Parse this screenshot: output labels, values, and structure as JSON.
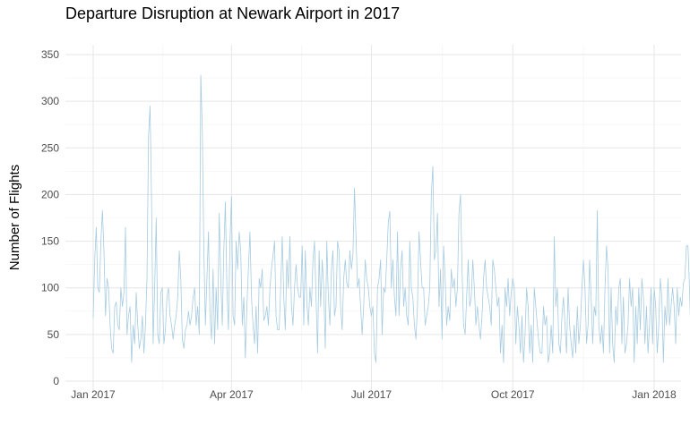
{
  "chart_data": {
    "type": "line",
    "title": "Departure Disruption at Newark Airport in 2017",
    "xlabel": "",
    "ylabel": "Number of Flights",
    "ylim": [
      0,
      350
    ],
    "xlim": [
      "2016-12-27",
      "2018-01-05"
    ],
    "y_ticks": [
      "0",
      "50",
      "100",
      "150",
      "200",
      "250",
      "300",
      "350"
    ],
    "x_ticks": [
      {
        "date": "2017-01-01",
        "label": "Jan 2017"
      },
      {
        "date": "2017-04-01",
        "label": "Apr 2017"
      },
      {
        "date": "2017-07-01",
        "label": "Jul 2017"
      },
      {
        "date": "2017-10-01",
        "label": "Oct 2017"
      },
      {
        "date": "2018-01-01",
        "label": "Jan 2018"
      }
    ],
    "grid": true,
    "line_color": "#a6cbe0",
    "series": [
      {
        "start_date": "2017-01-01",
        "values": [
          68,
          130,
          165,
          100,
          95,
          150,
          183,
          140,
          70,
          110,
          100,
          60,
          35,
          30,
          80,
          85,
          60,
          55,
          100,
          80,
          95,
          165,
          50,
          70,
          80,
          20,
          60,
          40,
          95,
          60,
          35,
          45,
          70,
          30,
          60,
          110,
          262,
          295,
          190,
          40,
          100,
          175,
          50,
          40,
          95,
          100,
          40,
          55,
          90,
          100,
          70,
          60,
          45,
          60,
          70,
          90,
          140,
          110,
          45,
          35,
          55,
          60,
          75,
          60,
          70,
          90,
          100,
          60,
          80,
          50,
          328,
          268,
          140,
          60,
          110,
          160,
          70,
          45,
          120,
          40,
          100,
          55,
          180,
          110,
          60,
          140,
          192,
          100,
          55,
          150,
          198,
          70,
          60,
          150,
          120,
          160,
          140,
          60,
          90,
          25,
          80,
          120,
          160,
          90,
          60,
          40,
          80,
          30,
          110,
          100,
          120,
          65,
          70,
          80,
          60,
          100,
          120,
          135,
          150,
          70,
          55,
          55,
          100,
          155,
          90,
          55,
          130,
          100,
          155,
          80,
          60,
          100,
          125,
          100,
          90,
          90,
          145,
          60,
          140,
          85,
          60,
          100,
          80,
          130,
          150,
          90,
          30,
          140,
          80,
          130,
          100,
          35,
          150,
          90,
          60,
          120,
          140,
          70,
          80,
          150,
          140,
          80,
          55,
          110,
          130,
          105,
          100,
          140,
          120,
          135,
          207,
          155,
          100,
          110,
          80,
          50,
          80,
          130,
          110,
          100,
          80,
          70,
          80,
          30,
          20,
          100,
          110,
          130,
          50,
          100,
          95,
          130,
          170,
          182,
          100,
          130,
          90,
          70,
          160,
          70,
          120,
          140,
          80,
          100,
          70,
          60,
          150,
          100,
          90,
          60,
          45,
          80,
          160,
          130,
          100,
          100,
          60,
          70,
          80,
          100,
          200,
          230,
          130,
          140,
          180,
          80,
          120,
          45,
          145,
          110,
          60,
          80,
          65,
          120,
          100,
          110,
          80,
          100,
          180,
          200,
          120,
          60,
          50,
          90,
          130,
          80,
          90,
          130,
          100,
          60,
          80,
          60,
          45,
          70,
          110,
          130,
          100,
          90,
          80,
          60,
          130,
          120,
          100,
          80,
          90,
          30,
          60,
          20,
          100,
          80,
          110,
          70,
          95,
          110,
          100,
          40,
          80,
          60,
          30,
          70,
          20,
          50,
          100,
          80,
          30,
          60,
          20,
          100,
          80,
          60,
          40,
          30,
          30,
          80,
          60,
          70,
          20,
          30,
          60,
          30,
          155,
          80,
          100,
          40,
          30,
          70,
          90,
          60,
          30,
          100,
          60,
          40,
          25,
          60,
          30,
          80,
          40,
          60,
          100,
          130,
          100,
          40,
          60,
          130,
          90,
          40,
          80,
          70,
          183,
          60,
          40,
          60,
          30,
          100,
          145,
          120,
          30,
          100,
          40,
          20,
          80,
          60,
          100,
          110,
          40,
          90,
          30,
          40,
          60,
          110,
          80,
          100,
          20,
          80,
          40,
          100,
          55,
          110,
          90,
          40,
          80,
          30,
          60,
          100,
          40,
          100,
          80,
          30,
          60,
          110,
          90,
          20,
          80,
          60,
          110,
          60,
          80,
          100,
          80,
          40,
          100,
          70,
          90,
          80,
          105,
          110,
          145,
          145,
          100,
          40,
          60,
          80,
          90,
          100,
          60,
          100,
          40,
          100,
          120,
          90,
          130,
          100,
          70
        ]
      }
    ]
  }
}
